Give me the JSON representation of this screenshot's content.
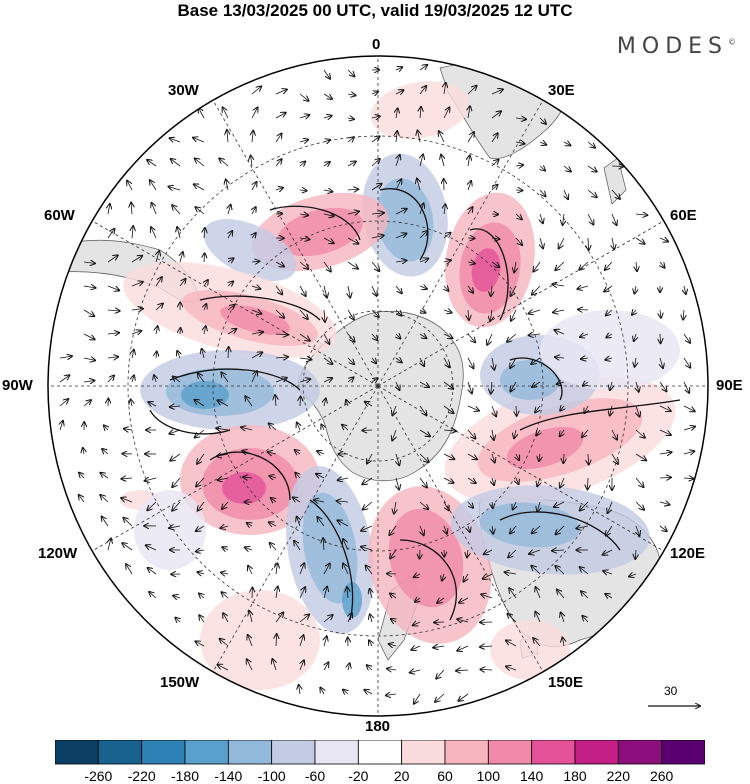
{
  "title": "Base 13/03/2025 00 UTC, valid 19/03/2025 12 UTC",
  "brand": "MODES",
  "brand_mark": "©",
  "longitude_labels": {
    "top": "0",
    "ne30": "30E",
    "ne60": "60E",
    "e90": "90E",
    "se120": "120E",
    "se150": "150E",
    "bottom": "180",
    "sw150": "150W",
    "sw120": "120W",
    "w90": "90W",
    "nw60": "60W",
    "nw30": "30W"
  },
  "reference_vector": {
    "label": "30"
  },
  "colorbar": {
    "ticks": [
      "-260",
      "-220",
      "-180",
      "-140",
      "-100",
      "-60",
      "-20",
      "20",
      "60",
      "100",
      "140",
      "180",
      "220",
      "260"
    ],
    "colors": [
      "#0b3f63",
      "#17628e",
      "#2d82b5",
      "#5aa0cc",
      "#93b9da",
      "#c3cbe4",
      "#e7e6f2",
      "#ffffff",
      "#fbdcdc",
      "#f6b5bf",
      "#f08aa8",
      "#e4529a",
      "#c41f86",
      "#8d0f7d",
      "#5a0070"
    ]
  },
  "colors": {
    "land": "#e4e4e4",
    "coast": "#555555",
    "grid": "#333333",
    "wind": "#111111"
  }
}
